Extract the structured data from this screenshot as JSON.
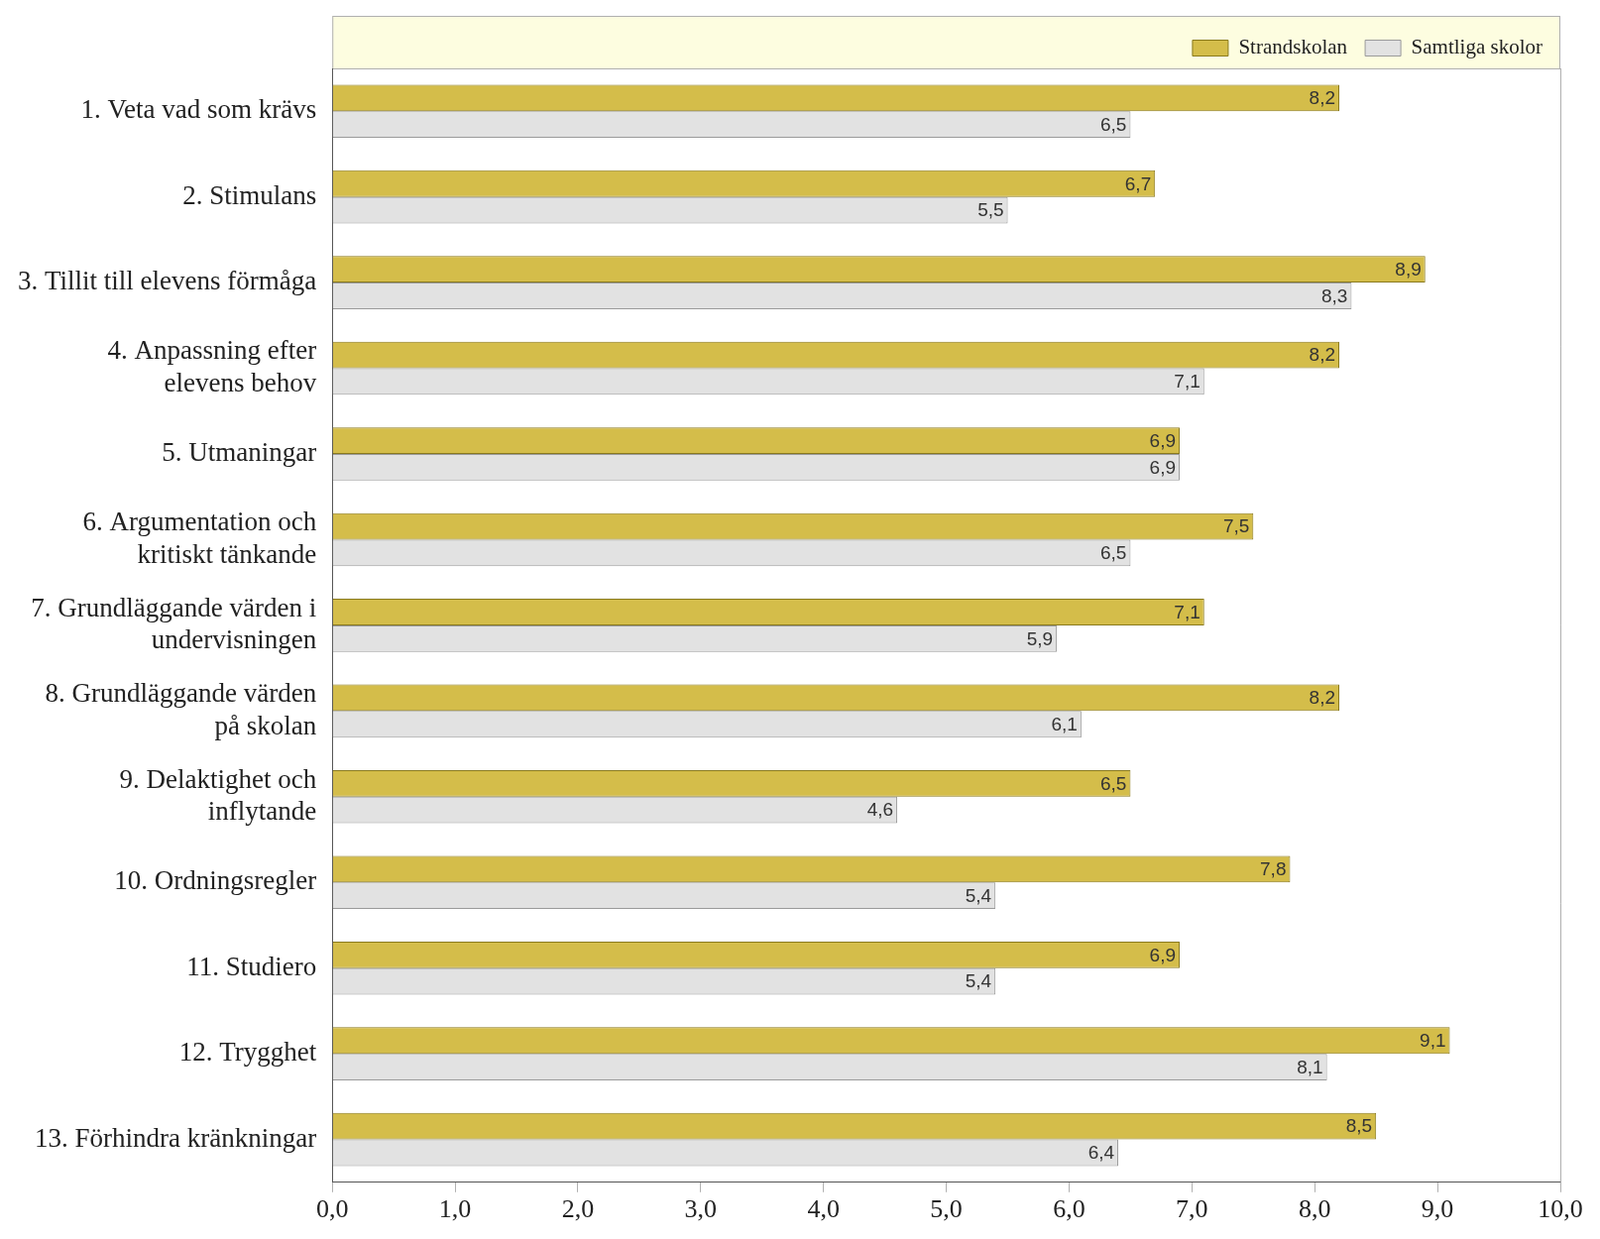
{
  "chart_data": {
    "type": "bar",
    "orientation": "horizontal",
    "categories": [
      "1. Veta vad som krävs",
      "2. Stimulans",
      "3. Tillit till elevens förmåga",
      "4. Anpassning efter\nelevens behov",
      "5. Utmaningar",
      "6. Argumentation och\nkritiskt tänkande",
      "7. Grundläggande värden i\nundervisningen",
      "8. Grundläggande värden\npå skolan",
      "9. Delaktighet och\ninflytande",
      "10. Ordningsregler",
      "11. Studiero",
      "12. Trygghet",
      "13. Förhindra kränkningar"
    ],
    "series": [
      {
        "name": "Strandskolan",
        "color": "#d4bd4a",
        "values": [
          8.2,
          6.7,
          8.9,
          8.2,
          6.9,
          7.5,
          7.1,
          8.2,
          6.5,
          7.8,
          6.9,
          9.1,
          8.5
        ],
        "value_labels": [
          "8,2",
          "6,7",
          "8,9",
          "8,2",
          "6,9",
          "7,5",
          "7,1",
          "8,2",
          "6,5",
          "7,8",
          "6,9",
          "9,1",
          "8,5"
        ]
      },
      {
        "name": "Samtliga skolor",
        "color": "#e2e2e2",
        "values": [
          6.5,
          5.5,
          8.3,
          7.1,
          6.9,
          6.5,
          5.9,
          6.1,
          4.6,
          5.4,
          5.4,
          8.1,
          6.4
        ],
        "value_labels": [
          "6,5",
          "5,5",
          "8,3",
          "7,1",
          "6,9",
          "6,5",
          "5,9",
          "6,1",
          "4,6",
          "5,4",
          "5,4",
          "8,1",
          "6,4"
        ]
      }
    ],
    "xlim": [
      0,
      10
    ],
    "xticks": [
      {
        "value": 0,
        "label": "0,0"
      },
      {
        "value": 1,
        "label": "1,0"
      },
      {
        "value": 2,
        "label": "2,0"
      },
      {
        "value": 3,
        "label": "3,0"
      },
      {
        "value": 4,
        "label": "4,0"
      },
      {
        "value": 5,
        "label": "5,0"
      },
      {
        "value": 6,
        "label": "6,0"
      },
      {
        "value": 7,
        "label": "7,0"
      },
      {
        "value": 8,
        "label": "8,0"
      },
      {
        "value": 9,
        "label": "9,0"
      },
      {
        "value": 10,
        "label": "10,0"
      }
    ],
    "grid": false,
    "legend": "top-right",
    "data_labels": true
  }
}
